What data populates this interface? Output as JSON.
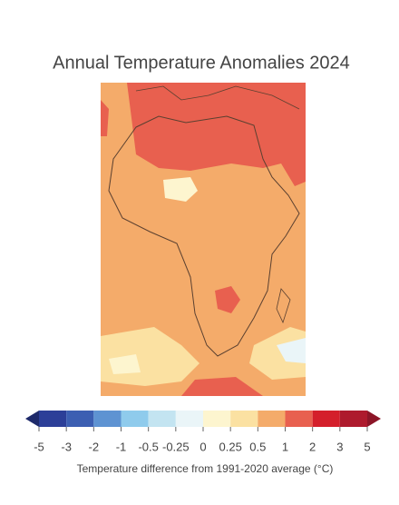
{
  "title": "Annual Temperature Anomalies 2024",
  "colorbar": {
    "ticks": [
      -5,
      -3,
      -2,
      -1,
      -0.5,
      -0.25,
      0,
      0.25,
      0.5,
      1,
      2,
      3,
      5
    ],
    "colors": [
      "#2c3f98",
      "#3c5fb2",
      "#5e93d2",
      "#8fcbec",
      "#c3e4f1",
      "#eaf5f8",
      "#fdf5cf",
      "#fbe1a2",
      "#f4ab6a",
      "#e8604f",
      "#d41f2b",
      "#ae1a2d"
    ],
    "extend_colors": [
      "#1e2a6a",
      "#8c1527"
    ]
  },
  "colorbar_label": "Temperature difference from 1991-2020 average (°C)"
}
